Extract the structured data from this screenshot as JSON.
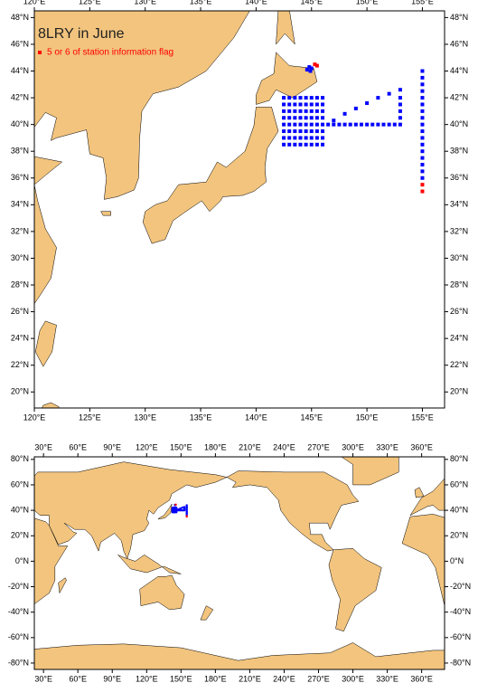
{
  "land_color": "#f2c47e",
  "station_color": "#0000ff",
  "flag_color": "#ff0000",
  "map_main": {
    "title": "8LRY in June",
    "legend_label": "5 or 6 of station information flag",
    "xlim": [
      120,
      157
    ],
    "ylim": [
      18.8,
      48.5
    ],
    "xticks": [
      {
        "value": 120,
        "label": "120°E"
      },
      {
        "value": 125,
        "label": "125°E"
      },
      {
        "value": 130,
        "label": "130°E"
      },
      {
        "value": 135,
        "label": "135°E"
      },
      {
        "value": 140,
        "label": "140°E"
      },
      {
        "value": 145,
        "label": "145°E"
      },
      {
        "value": 150,
        "label": "150°E"
      },
      {
        "value": 155,
        "label": "155°E"
      }
    ],
    "yticks": [
      {
        "value": 20,
        "label": "20°N"
      },
      {
        "value": 22,
        "label": "22°N"
      },
      {
        "value": 24,
        "label": "24°N"
      },
      {
        "value": 26,
        "label": "26°N"
      },
      {
        "value": 28,
        "label": "28°N"
      },
      {
        "value": 30,
        "label": "30°N"
      },
      {
        "value": 32,
        "label": "32°N"
      },
      {
        "value": 34,
        "label": "34°N"
      },
      {
        "value": 36,
        "label": "36°N"
      },
      {
        "value": 38,
        "label": "38°N"
      },
      {
        "value": 40,
        "label": "40°N"
      },
      {
        "value": 42,
        "label": "42°N"
      },
      {
        "value": 44,
        "label": "44°N"
      },
      {
        "value": 46,
        "label": "46°N"
      },
      {
        "value": 48,
        "label": "48°N"
      }
    ]
  },
  "map_world": {
    "xlim": [
      22,
      380
    ],
    "ylim": [
      -85,
      82
    ],
    "xticks": [
      {
        "value": 30,
        "label": "30°E"
      },
      {
        "value": 60,
        "label": "60°E"
      },
      {
        "value": 90,
        "label": "90°E"
      },
      {
        "value": 120,
        "label": "120°E"
      },
      {
        "value": 150,
        "label": "150°E"
      },
      {
        "value": 180,
        "label": "180°E"
      },
      {
        "value": 210,
        "label": "210°E"
      },
      {
        "value": 240,
        "label": "240°E"
      },
      {
        "value": 270,
        "label": "270°E"
      },
      {
        "value": 300,
        "label": "300°E"
      },
      {
        "value": 330,
        "label": "330°E"
      },
      {
        "value": 360,
        "label": "360°E"
      }
    ],
    "yticks": [
      {
        "value": -80,
        "label": "-80°N"
      },
      {
        "value": -60,
        "label": "-60°N"
      },
      {
        "value": -40,
        "label": "-40°N"
      },
      {
        "value": -20,
        "label": "-20°N"
      },
      {
        "value": 0,
        "label": "0°N"
      },
      {
        "value": 20,
        "label": "20°N"
      },
      {
        "value": 40,
        "label": "40°N"
      },
      {
        "value": 60,
        "label": "60°N"
      },
      {
        "value": 80,
        "label": "80°N"
      }
    ]
  },
  "stations": [
    [
      142.5,
      42
    ],
    [
      143,
      42
    ],
    [
      143.5,
      42
    ],
    [
      144,
      42
    ],
    [
      144.5,
      42
    ],
    [
      145,
      42
    ],
    [
      145.5,
      42
    ],
    [
      146,
      42
    ],
    [
      142.5,
      41.5
    ],
    [
      143,
      41.5
    ],
    [
      143.5,
      41.5
    ],
    [
      144,
      41.5
    ],
    [
      144.5,
      41.5
    ],
    [
      145,
      41.5
    ],
    [
      145.5,
      41.5
    ],
    [
      146,
      41.5
    ],
    [
      142.5,
      41
    ],
    [
      143,
      41
    ],
    [
      143.5,
      41
    ],
    [
      144,
      41
    ],
    [
      144.5,
      41
    ],
    [
      145,
      41
    ],
    [
      145.5,
      41
    ],
    [
      146,
      41
    ],
    [
      142.5,
      40.5
    ],
    [
      143,
      40.5
    ],
    [
      143.5,
      40.5
    ],
    [
      144,
      40.5
    ],
    [
      144.5,
      40.5
    ],
    [
      145,
      40.5
    ],
    [
      145.5,
      40.5
    ],
    [
      146,
      40.5
    ],
    [
      142.5,
      40
    ],
    [
      143,
      40
    ],
    [
      143.5,
      40
    ],
    [
      144,
      40
    ],
    [
      144.5,
      40
    ],
    [
      145,
      40
    ],
    [
      145.5,
      40
    ],
    [
      146,
      40
    ],
    [
      142.5,
      39.5
    ],
    [
      143,
      39.5
    ],
    [
      143.5,
      39.5
    ],
    [
      144,
      39.5
    ],
    [
      144.5,
      39.5
    ],
    [
      145,
      39.5
    ],
    [
      145.5,
      39.5
    ],
    [
      146,
      39.5
    ],
    [
      142.5,
      39
    ],
    [
      143,
      39
    ],
    [
      143.5,
      39
    ],
    [
      144,
      39
    ],
    [
      144.5,
      39
    ],
    [
      145,
      39
    ],
    [
      145.5,
      39
    ],
    [
      146,
      39
    ],
    [
      142.5,
      38.5
    ],
    [
      143,
      38.5
    ],
    [
      143.5,
      38.5
    ],
    [
      144,
      38.5
    ],
    [
      144.5,
      38.5
    ],
    [
      145,
      38.5
    ],
    [
      145.5,
      38.5
    ],
    [
      146,
      38.5
    ],
    [
      146.5,
      40
    ],
    [
      147,
      40
    ],
    [
      147.5,
      40
    ],
    [
      148,
      40
    ],
    [
      148.5,
      40
    ],
    [
      149,
      40
    ],
    [
      149.5,
      40
    ],
    [
      150,
      40
    ],
    [
      150.5,
      40
    ],
    [
      151,
      40
    ],
    [
      151.5,
      40
    ],
    [
      152,
      40
    ],
    [
      152.5,
      40
    ],
    [
      153,
      40
    ],
    [
      147,
      40.3
    ],
    [
      148,
      40.8
    ],
    [
      149,
      41.2
    ],
    [
      150,
      41.6
    ],
    [
      151,
      42
    ],
    [
      152,
      42.3
    ],
    [
      153,
      42.6
    ],
    [
      153,
      40.5
    ],
    [
      153,
      41
    ],
    [
      153,
      41.5
    ],
    [
      153,
      42
    ],
    [
      155,
      36
    ],
    [
      155,
      36.5
    ],
    [
      155,
      37
    ],
    [
      155,
      37.5
    ],
    [
      155,
      38
    ],
    [
      155,
      38.5
    ],
    [
      155,
      39
    ],
    [
      155,
      39.5
    ],
    [
      155,
      40
    ],
    [
      155,
      40.5
    ],
    [
      155,
      41
    ],
    [
      155,
      41.5
    ],
    [
      155,
      42
    ],
    [
      155,
      42.5
    ],
    [
      155,
      43
    ],
    [
      155,
      43.5
    ],
    [
      155,
      44
    ],
    [
      144.6,
      44.1
    ],
    [
      144.8,
      44.3
    ],
    [
      145,
      44.2
    ],
    [
      144.9,
      44
    ]
  ],
  "flagged_stations": [
    [
      155,
      35
    ],
    [
      155,
      35.5
    ],
    [
      145.3,
      44.5
    ],
    [
      145.5,
      44.4
    ]
  ]
}
